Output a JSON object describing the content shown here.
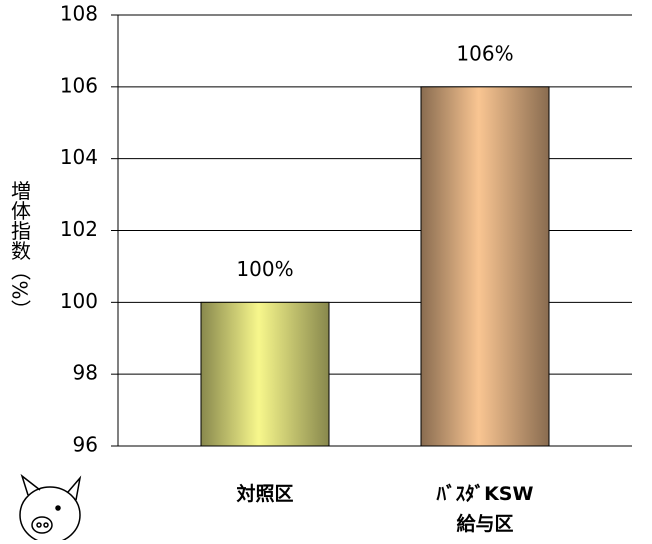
{
  "chart_data": {
    "type": "bar",
    "y_label": "増体指数（%）",
    "categories": [
      "対照区",
      "ﾊﾞｽﾀﾞKSW\n給与区"
    ],
    "values": [
      100,
      106
    ],
    "value_labels": [
      "100%",
      "106%"
    ],
    "colors": [
      "#f7f78c",
      "#f9c592"
    ],
    "ylim": [
      96,
      108
    ],
    "yticks": [
      96,
      98,
      100,
      102,
      104,
      106,
      108
    ],
    "grid": true
  }
}
